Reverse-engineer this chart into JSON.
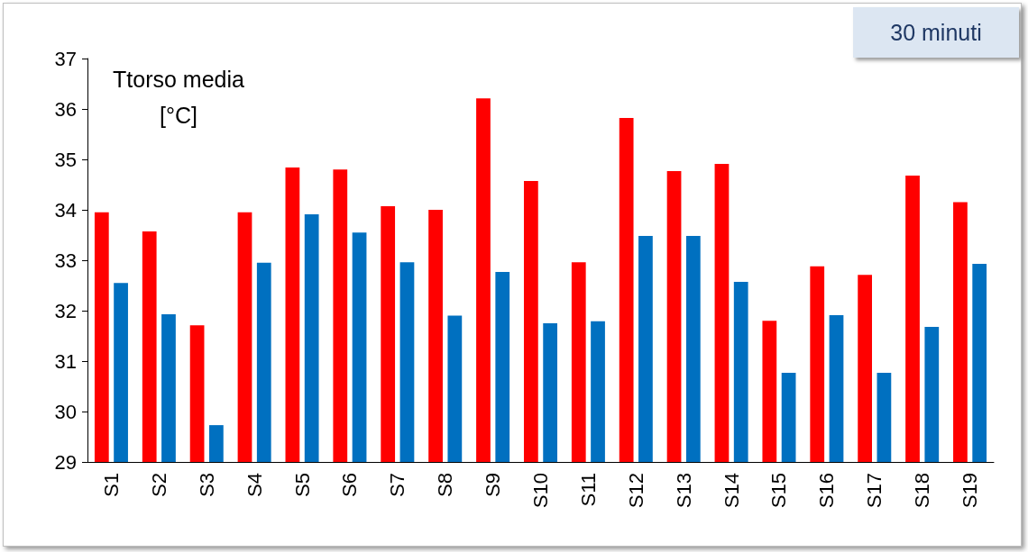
{
  "chart_data": {
    "type": "bar",
    "ylabel": "Ttorso media\n[°C]",
    "annotations": [
      "30 minuti"
    ],
    "categories": [
      "S1",
      "S2",
      "S3",
      "S4",
      "S5",
      "S6",
      "S7",
      "S8",
      "S9",
      "S10",
      "S11",
      "S12",
      "S13",
      "S14",
      "S15",
      "S16",
      "S17",
      "S18",
      "S19"
    ],
    "series": [
      {
        "color": "#ff0000",
        "values": [
          33.95,
          33.57,
          31.71,
          33.95,
          34.84,
          34.8,
          34.07,
          34.0,
          36.21,
          34.57,
          32.96,
          35.82,
          34.77,
          34.91,
          31.8,
          32.88,
          32.71,
          34.68,
          34.15
        ]
      },
      {
        "color": "#0070c0",
        "values": [
          32.55,
          31.93,
          29.73,
          32.95,
          33.91,
          33.55,
          32.96,
          31.9,
          32.77,
          31.75,
          31.79,
          33.48,
          33.48,
          32.57,
          30.77,
          31.91,
          30.77,
          31.68,
          32.93
        ]
      }
    ],
    "ylim": [
      29,
      37
    ],
    "yticks": [
      29,
      30,
      31,
      32,
      33,
      34,
      35,
      36,
      37
    ],
    "grid": false
  }
}
